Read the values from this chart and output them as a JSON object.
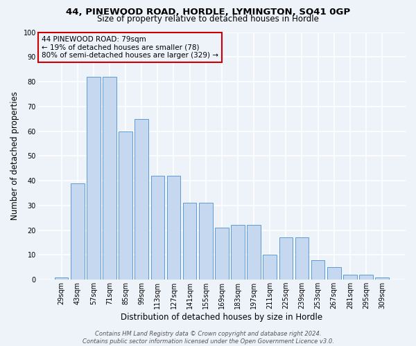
{
  "title1": "44, PINEWOOD ROAD, HORDLE, LYMINGTON, SO41 0GP",
  "title2": "Size of property relative to detached houses in Hordle",
  "xlabel": "Distribution of detached houses by size in Hordle",
  "ylabel": "Number of detached properties",
  "categories": [
    "29sqm",
    "43sqm",
    "57sqm",
    "71sqm",
    "85sqm",
    "99sqm",
    "113sqm",
    "127sqm",
    "141sqm",
    "155sqm",
    "169sqm",
    "183sqm",
    "197sqm",
    "211sqm",
    "225sqm",
    "239sqm",
    "253sqm",
    "267sqm",
    "281sqm",
    "295sqm",
    "309sqm"
  ],
  "values": [
    1,
    39,
    82,
    82,
    60,
    65,
    42,
    42,
    31,
    31,
    21,
    22,
    22,
    10,
    17,
    17,
    8,
    5,
    2,
    2,
    1
  ],
  "bar_color": "#c6d8ef",
  "bar_edge_color": "#5b9bd5",
  "annotation_box_color": "#cc0000",
  "annotation_text": "44 PINEWOOD ROAD: 79sqm\n← 19% of detached houses are smaller (78)\n80% of semi-detached houses are larger (329) →",
  "ylim": [
    0,
    100
  ],
  "yticks": [
    0,
    10,
    20,
    30,
    40,
    50,
    60,
    70,
    80,
    90,
    100
  ],
  "footer": "Contains HM Land Registry data © Crown copyright and database right 2024.\nContains public sector information licensed under the Open Government Licence v3.0.",
  "bg_color": "#eef2f9",
  "plot_bg_color": "#eef2f9",
  "grid_color": "#ffffff",
  "title1_fontsize": 9.5,
  "title2_fontsize": 8.5,
  "ylabel_fontsize": 8.5,
  "xlabel_fontsize": 8.5,
  "tick_fontsize": 7,
  "footer_fontsize": 6,
  "ann_fontsize": 7.5
}
